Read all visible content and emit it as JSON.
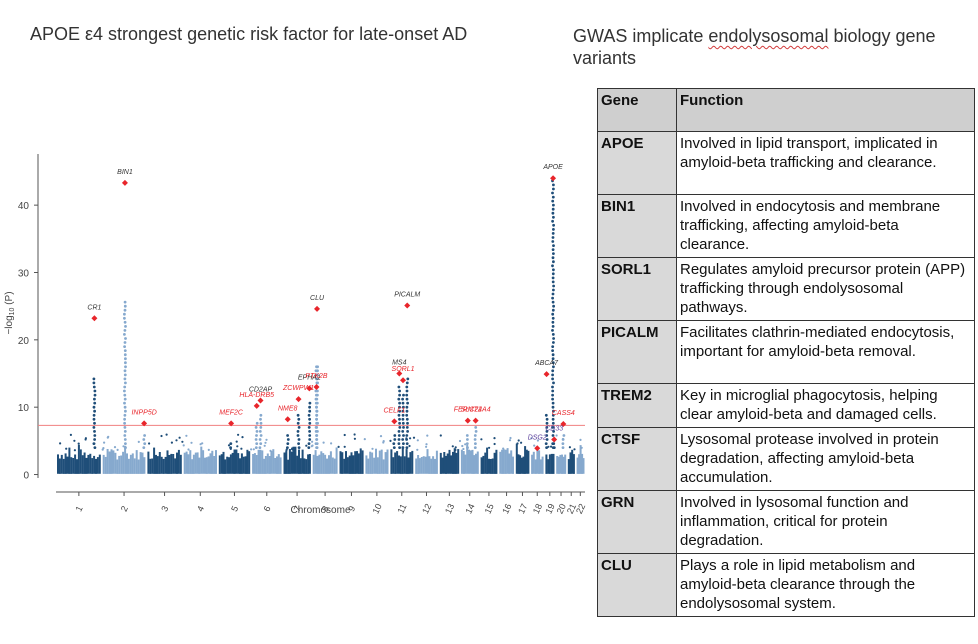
{
  "slide": {
    "title": "APOE ε4 strongest genetic risk factor for late-onset AD",
    "heading_pre": "GWAS implicate ",
    "heading_marked": "endolysosomal",
    "heading_post": " biology gene variants"
  },
  "table": {
    "headers": {
      "gene": "Gene",
      "function": "Function"
    },
    "rows": [
      {
        "gene": "APOE",
        "function": "Involved in lipid transport, implicated in amyloid-beta trafficking and clearance."
      },
      {
        "gene": "BIN1",
        "function": "Involved in endocytosis and membrane trafficking, affecting amyloid-beta clearance."
      },
      {
        "gene": "SORL1",
        "function": "Regulates amyloid precursor protein (APP) trafficking through endolysosomal pathways."
      },
      {
        "gene": "PICALM",
        "function": "Facilitates clathrin-mediated endocytosis, important for amyloid-beta removal."
      },
      {
        "gene": "TREM2",
        "function": "Key in microglial phagocytosis, helping clear amyloid-beta and damaged cells."
      },
      {
        "gene": "CTSF",
        "function": "Lysosomal protease involved in protein degradation, affecting amyloid-beta accumulation."
      },
      {
        "gene": "GRN",
        "function": "Involved in lysosomal function and inflammation, critical for protein degradation."
      },
      {
        "gene": "CLU",
        "function": "Plays a role in lipid metabolism and amyloid-beta clearance through the endolysosomal system."
      }
    ]
  },
  "chart_data": {
    "type": "scatter",
    "subtype": "manhattan",
    "xlabel": "Chromosome",
    "ylabel_main": "−log",
    "ylabel_sub": "10",
    "ylabel_tail": " (P)",
    "ylim": [
      -2,
      47
    ],
    "yticks": [
      0,
      10,
      20,
      30,
      40
    ],
    "significance_threshold": 7.3,
    "colors": {
      "dark": "#1f4e79",
      "light": "#86a9ce",
      "hit": "#e8252b",
      "line": "#f08080",
      "label_grey": "#333333",
      "label_purple": "#5a3e9a"
    },
    "chromosomes": [
      {
        "label": "1",
        "span": 249
      },
      {
        "label": "2",
        "span": 243
      },
      {
        "label": "3",
        "span": 198
      },
      {
        "label": "4",
        "span": 191
      },
      {
        "label": "5",
        "span": 181
      },
      {
        "label": "6",
        "span": 171
      },
      {
        "label": "7",
        "span": 159
      },
      {
        "label": "8",
        "span": 146
      },
      {
        "label": "9",
        "span": 141
      },
      {
        "label": "10",
        "span": 136
      },
      {
        "label": "11",
        "span": 135
      },
      {
        "label": "12",
        "span": 134
      },
      {
        "label": "13",
        "span": 115
      },
      {
        "label": "14",
        "span": 107
      },
      {
        "label": "15",
        "span": 102
      },
      {
        "label": "16",
        "span": 90
      },
      {
        "label": "17",
        "span": 83
      },
      {
        "label": "18",
        "span": 78
      },
      {
        "label": "19",
        "span": 59
      },
      {
        "label": "20",
        "span": 63
      },
      {
        "label": "21",
        "span": 48
      },
      {
        "label": "22",
        "span": 51
      }
    ],
    "loci": [
      {
        "gene": "CR1",
        "chrom": "1",
        "pos": 0.84,
        "value": 23.2,
        "label_color": "grey",
        "tower": 14.5
      },
      {
        "gene": "BIN1",
        "chrom": "2",
        "pos": 0.52,
        "value": 43.3,
        "label_color": "grey",
        "tower": 26
      },
      {
        "gene": "INPP5D",
        "chrom": "2",
        "pos": 0.95,
        "value": 7.6,
        "label_color": "red",
        "tower": 6
      },
      {
        "gene": "MEF2C",
        "chrom": "5",
        "pos": 0.4,
        "value": 7.6,
        "label_color": "red",
        "tower": 5
      },
      {
        "gene": "HLA-DRB5",
        "chrom": "6",
        "pos": 0.18,
        "value": 10.2,
        "label_color": "red",
        "tower": 8
      },
      {
        "gene": "CD2AP",
        "chrom": "6",
        "pos": 0.3,
        "value": 11.0,
        "label_color": "grey",
        "tower": 9
      },
      {
        "gene": "NME8",
        "chrom": "7",
        "pos": 0.18,
        "value": 8.2,
        "label_color": "red",
        "tower": 6
      },
      {
        "gene": "ZCWPW1",
        "chrom": "7",
        "pos": 0.55,
        "value": 11.2,
        "label_color": "red",
        "tower": 9
      },
      {
        "gene": "EPHA1",
        "chrom": "7",
        "pos": 0.92,
        "value": 12.8,
        "label_color": "grey",
        "tower": 11
      },
      {
        "gene": "PTK2B",
        "chrom": "8",
        "pos": 0.18,
        "value": 13.0,
        "label_color": "red",
        "tower": 16
      },
      {
        "gene": "CLU",
        "chrom": "8",
        "pos": 0.2,
        "value": 24.6,
        "label_color": "grey",
        "tower": 16.5
      },
      {
        "gene": "CELF1",
        "chrom": "11",
        "pos": 0.2,
        "value": 7.9,
        "label_color": "red",
        "tower": 6
      },
      {
        "gene": "MS4",
        "chrom": "11",
        "pos": 0.4,
        "value": 15.0,
        "label_color": "grey",
        "tower": 13
      },
      {
        "gene": "SORL1",
        "chrom": "11",
        "pos": 0.55,
        "value": 14.0,
        "label_color": "red",
        "tower": 12
      },
      {
        "gene": "PICALM",
        "chrom": "11",
        "pos": 0.72,
        "value": 25.1,
        "label_color": "grey",
        "tower": 14.5
      },
      {
        "gene": "FERMT2",
        "chrom": "14",
        "pos": 0.4,
        "value": 8.0,
        "label_color": "red",
        "tower": 6
      },
      {
        "gene": "SLC24A4",
        "chrom": "14",
        "pos": 0.8,
        "value": 8.0,
        "label_color": "red",
        "tower": 7
      },
      {
        "gene": "DSG2",
        "chrom": "18",
        "pos": 0.5,
        "value": 3.9,
        "label_color": "purple",
        "tower": 3
      },
      {
        "gene": "ABCA7",
        "chrom": "19",
        "pos": 0.2,
        "value": 14.9,
        "label_color": "grey",
        "tower": 9
      },
      {
        "gene": "APOE",
        "chrom": "19",
        "pos": 0.8,
        "value": 44.0,
        "label_color": "grey",
        "tower": 44
      },
      {
        "gene": "CD33",
        "chrom": "19",
        "pos": 0.9,
        "value": 5.2,
        "label_color": "purple",
        "tower": 5
      },
      {
        "gene": "CASS4",
        "chrom": "20",
        "pos": 0.7,
        "value": 7.5,
        "label_color": "red",
        "tower": 6
      }
    ]
  }
}
